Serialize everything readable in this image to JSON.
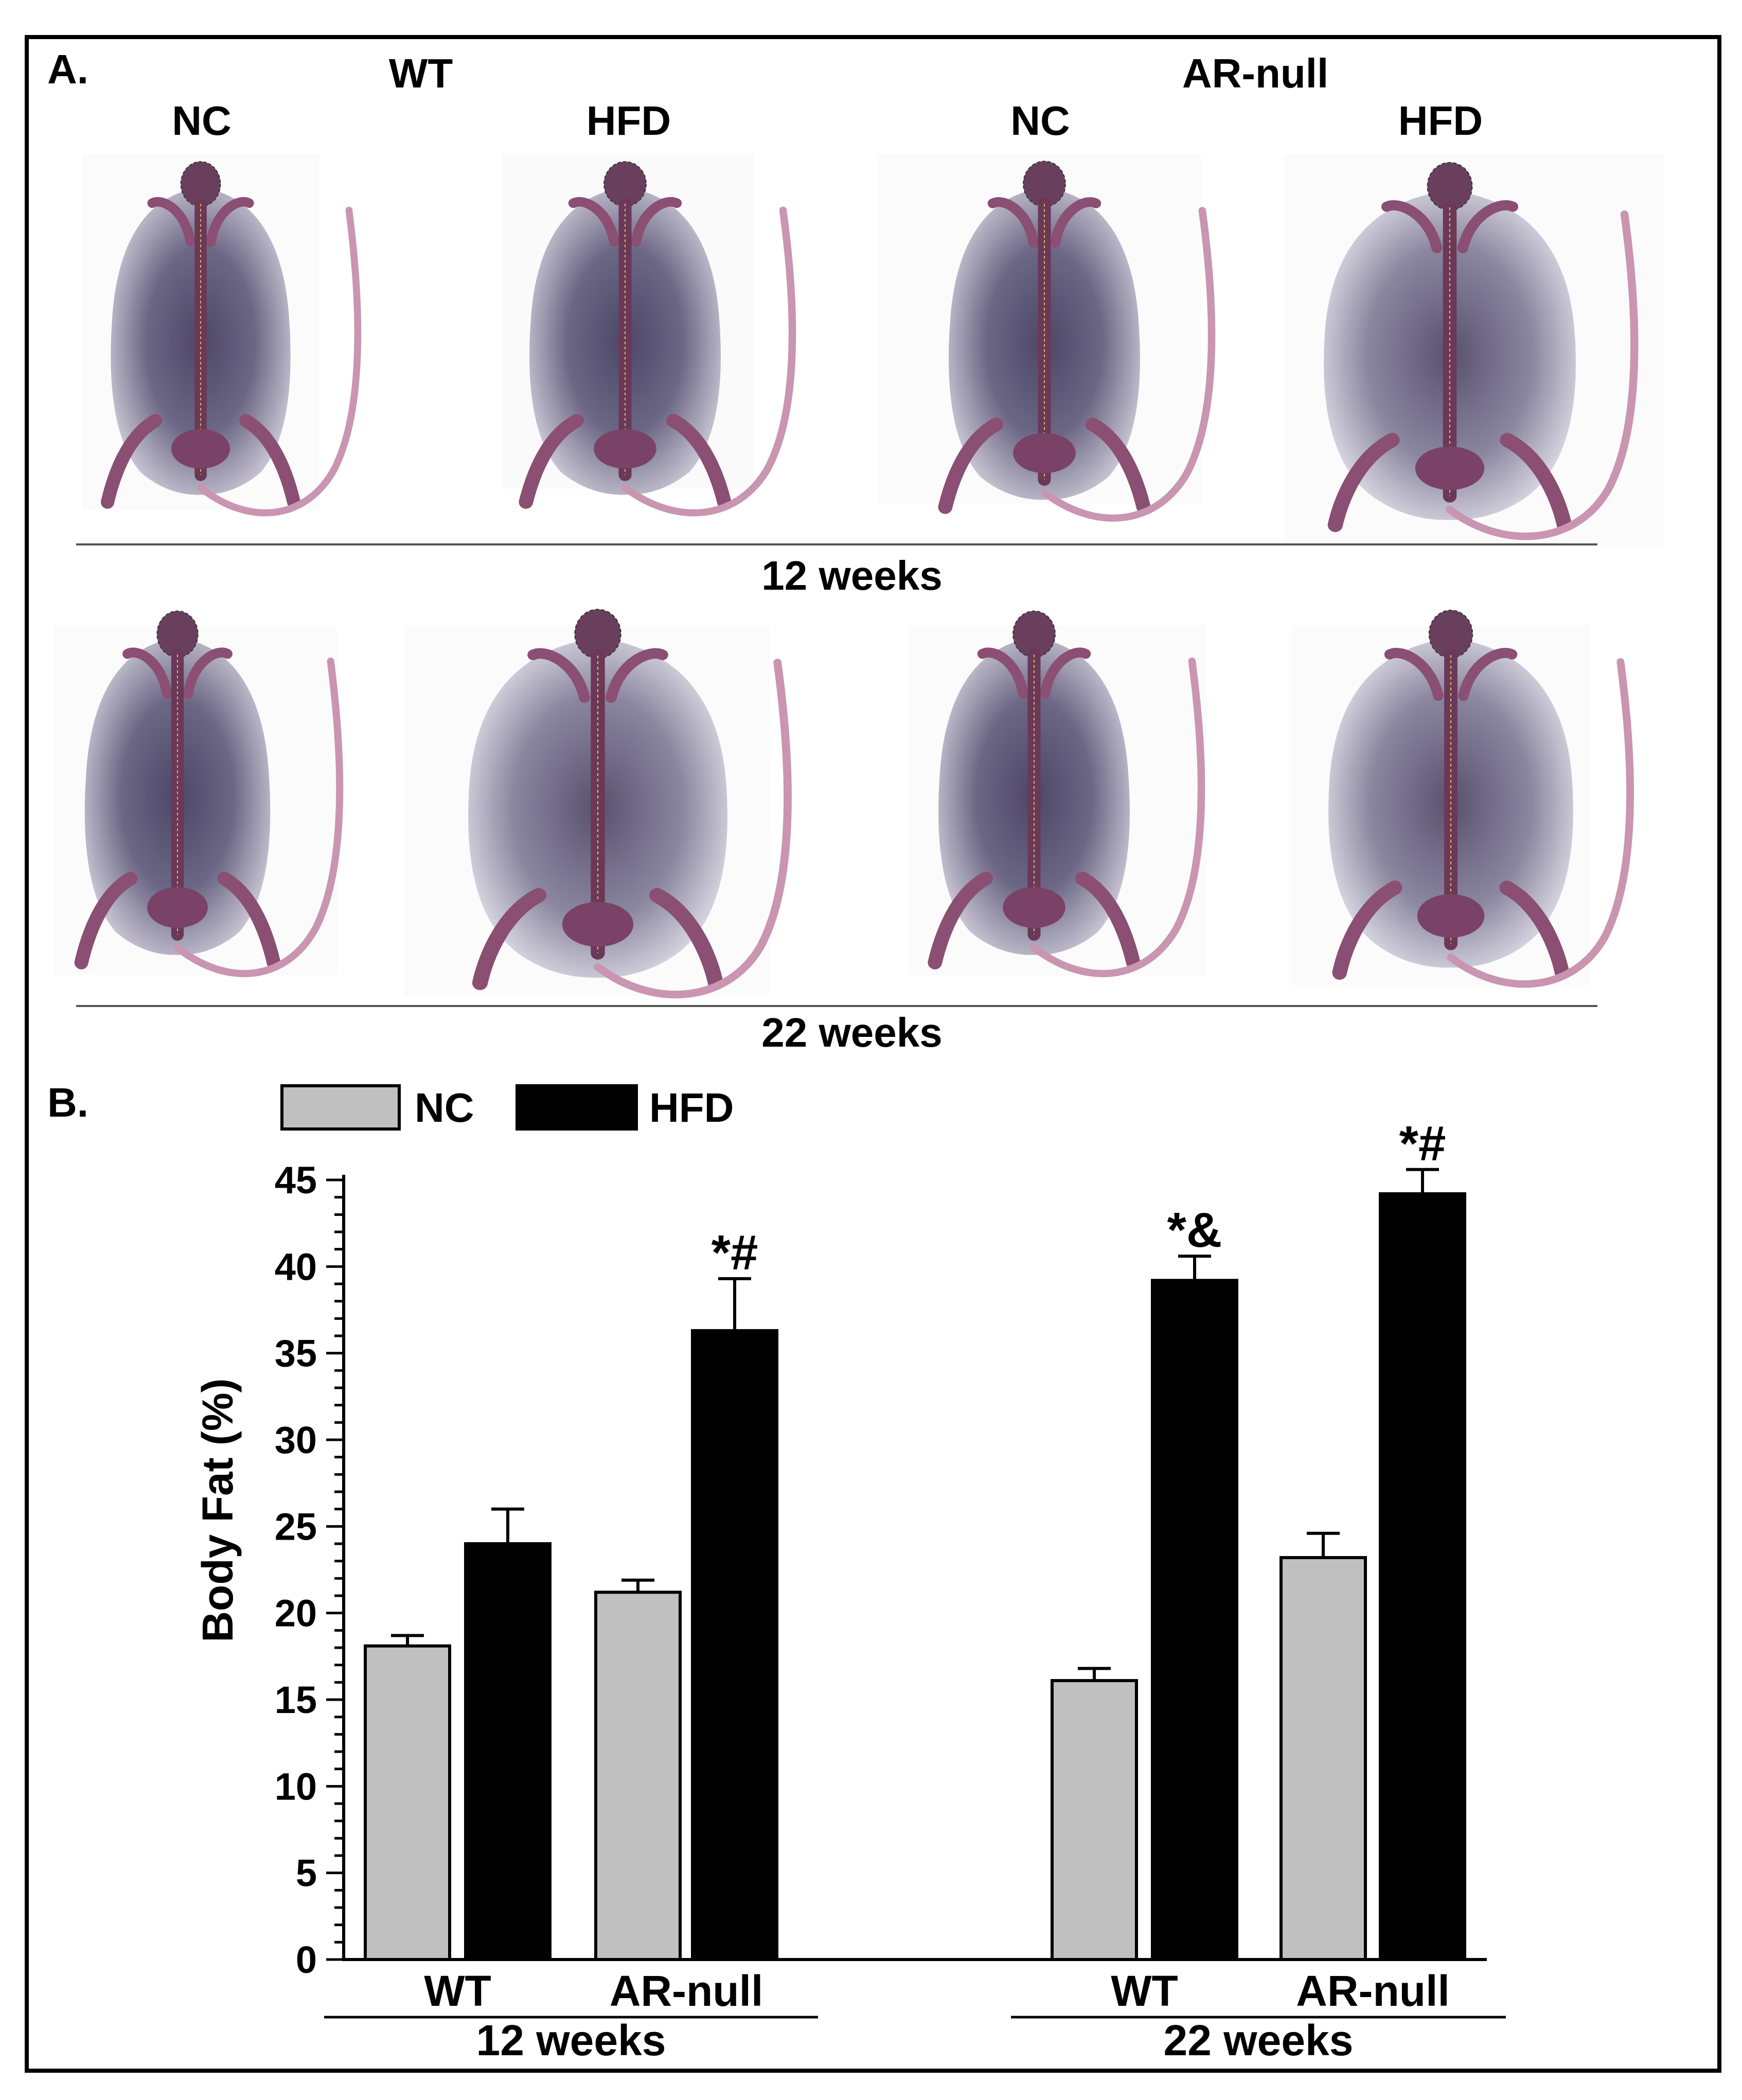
{
  "panel_a": {
    "label": "A.",
    "genotypes": [
      {
        "name": "WT",
        "diets": [
          "NC",
          "HFD"
        ]
      },
      {
        "name": "AR-null",
        "diets": [
          "NC",
          "HFD"
        ]
      }
    ],
    "rows": [
      "12 weeks",
      "22 weeks"
    ]
  },
  "panel_b": {
    "label": "B.",
    "legend": [
      {
        "label": "NC",
        "color": "#c0c0c0"
      },
      {
        "label": "HFD",
        "color": "#000000"
      }
    ]
  },
  "chart_data": {
    "type": "bar",
    "ylabel": "Body Fat (%)",
    "ylim": [
      0,
      45
    ],
    "yticks": [
      0,
      5,
      10,
      15,
      20,
      25,
      30,
      35,
      40,
      45
    ],
    "grid": false,
    "legend_position": "top-left",
    "groups": [
      {
        "label": "12 weeks",
        "subgroups": [
          {
            "label": "WT",
            "bars": [
              {
                "series": "NC",
                "value": 18.1,
                "error": 0.6,
                "annotation": ""
              },
              {
                "series": "HFD",
                "value": 24.0,
                "error": 2.0,
                "annotation": ""
              }
            ]
          },
          {
            "label": "AR-null",
            "bars": [
              {
                "series": "NC",
                "value": 21.2,
                "error": 0.7,
                "annotation": ""
              },
              {
                "series": "HFD",
                "value": 36.3,
                "error": 3.0,
                "annotation": "*#"
              }
            ]
          }
        ]
      },
      {
        "label": "22 weeks",
        "subgroups": [
          {
            "label": "WT",
            "bars": [
              {
                "series": "NC",
                "value": 16.1,
                "error": 0.7,
                "annotation": ""
              },
              {
                "series": "HFD",
                "value": 39.2,
                "error": 1.4,
                "annotation": "*&"
              }
            ]
          },
          {
            "label": "AR-null",
            "bars": [
              {
                "series": "NC",
                "value": 23.2,
                "error": 1.4,
                "annotation": ""
              },
              {
                "series": "HFD",
                "value": 44.2,
                "error": 1.4,
                "annotation": "*#"
              }
            ]
          }
        ]
      }
    ]
  }
}
